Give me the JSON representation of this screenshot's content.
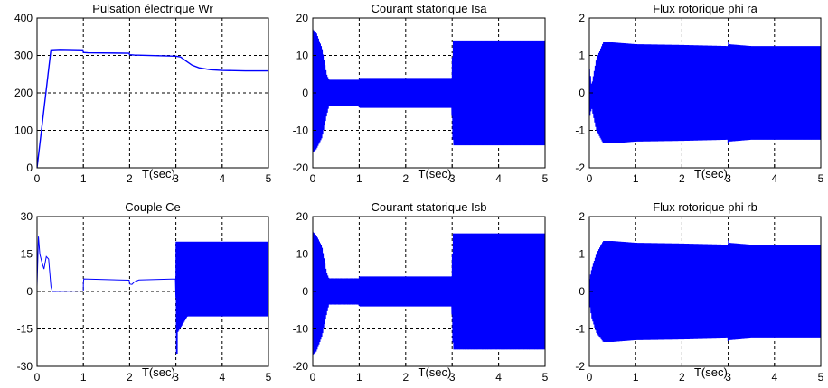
{
  "chart_data": [
    {
      "type": "line",
      "title": "Pulsation électrique Wr",
      "xlabel": "T(sec)",
      "ylabel": "",
      "xlim": [
        0,
        5
      ],
      "ylim": [
        0,
        400
      ],
      "xticks": [
        0,
        1,
        2,
        3,
        4,
        5
      ],
      "yticks": [
        0,
        100,
        200,
        300,
        400
      ],
      "grid": true,
      "color": "#0000ff",
      "signal": "smooth",
      "series": [
        {
          "x": [
            0,
            0.3,
            0.5,
            0.99,
            1.0,
            1.1,
            1.99,
            2.0,
            2.1,
            2.99,
            3.0,
            3.1,
            3.2,
            3.35,
            3.5,
            3.75,
            4.0,
            4.5,
            5.0
          ],
          "values": [
            0,
            315,
            316,
            315,
            308,
            307,
            306,
            302,
            301,
            298,
            298,
            296,
            287,
            274,
            267,
            262,
            260,
            259,
            259
          ]
        }
      ]
    },
    {
      "type": "line",
      "title": "Courant statorique Isa",
      "xlabel": "T(sec)",
      "ylabel": "",
      "xlim": [
        0,
        5
      ],
      "ylim": [
        -20,
        20
      ],
      "xticks": [
        0,
        1,
        2,
        3,
        4,
        5
      ],
      "yticks": [
        -20,
        -10,
        0,
        10,
        20
      ],
      "grid": true,
      "color": "#0000ff",
      "signal": "oscillation",
      "freq": 50,
      "envelope": {
        "x": [
          0,
          0.08,
          0.2,
          0.3,
          0.35,
          0.5,
          0.99,
          1.0,
          2.99,
          3.0,
          3.02,
          5.0
        ],
        "upper": [
          17,
          16,
          12,
          5,
          3.5,
          3.5,
          3.5,
          4,
          4,
          8,
          14,
          14
        ],
        "lower": [
          -16,
          -15,
          -12,
          -6,
          -3.5,
          -3.5,
          -3.5,
          -4,
          -4,
          -8,
          -14,
          -14
        ]
      }
    },
    {
      "type": "line",
      "title": "Flux rotorique phi ra",
      "xlabel": "T(sec)",
      "ylabel": "",
      "xlim": [
        0,
        5
      ],
      "ylim": [
        -2,
        2
      ],
      "xticks": [
        0,
        1,
        2,
        3,
        4,
        5
      ],
      "yticks": [
        -2,
        -1,
        0,
        1,
        2
      ],
      "grid": true,
      "color": "#0000ff",
      "signal": "oscillation",
      "freq": 50,
      "envelope": {
        "x": [
          0,
          0.05,
          0.15,
          0.3,
          0.5,
          1.0,
          2.0,
          2.99,
          3.0,
          3.02,
          3.5,
          5.0
        ],
        "upper": [
          0.7,
          0.2,
          0.9,
          1.35,
          1.35,
          1.3,
          1.28,
          1.25,
          1.4,
          1.3,
          1.25,
          1.25
        ],
        "lower": [
          -0.7,
          -0.4,
          -1.0,
          -1.35,
          -1.35,
          -1.3,
          -1.28,
          -1.25,
          -1.4,
          -1.3,
          -1.25,
          -1.25
        ]
      }
    },
    {
      "type": "line",
      "title": "Couple  Ce",
      "xlabel": "T(sec)",
      "ylabel": "",
      "xlim": [
        0,
        5
      ],
      "ylim": [
        -30,
        30
      ],
      "xticks": [
        0,
        1,
        2,
        3,
        4,
        5
      ],
      "yticks": [
        -30,
        -15,
        0,
        15,
        30
      ],
      "grid": true,
      "color": "#0000ff",
      "signal": "torque",
      "segments": [
        {
          "x": [
            0,
            0.03,
            0.06,
            0.1,
            0.15,
            0.2,
            0.25,
            0.3,
            0.33,
            1.0,
            1.0,
            1.01,
            1.99,
            2.0,
            2.05,
            2.1,
            2.2,
            2.99
          ],
          "values": [
            2,
            22,
            15,
            12,
            9,
            14,
            13,
            2,
            0,
            0.2,
            3.5,
            5,
            4.5,
            3,
            2.8,
            3.8,
            4.6,
            5
          ]
        }
      ],
      "oscillation": {
        "x0": 3.0,
        "x1": 5.0,
        "upper": 20,
        "lower": -10,
        "spike": -25,
        "freq": 60
      }
    },
    {
      "type": "line",
      "title": "Courant statorique Isb",
      "xlabel": "T(sec)",
      "ylabel": "",
      "xlim": [
        0,
        5
      ],
      "ylim": [
        -20,
        20
      ],
      "xticks": [
        0,
        1,
        2,
        3,
        4,
        5
      ],
      "yticks": [
        -20,
        -10,
        0,
        10,
        20
      ],
      "grid": true,
      "color": "#0000ff",
      "signal": "oscillation",
      "freq": 50,
      "envelope": {
        "x": [
          0,
          0.08,
          0.2,
          0.3,
          0.35,
          0.5,
          0.99,
          1.0,
          2.99,
          3.0,
          3.02,
          5.0
        ],
        "upper": [
          16,
          15,
          12,
          5,
          3.5,
          3.5,
          3.5,
          4,
          4,
          8,
          15.5,
          15.5
        ],
        "lower": [
          -17,
          -16,
          -12,
          -6,
          -3.5,
          -3.5,
          -3.5,
          -4,
          -4,
          -8,
          -15.5,
          -15.5
        ]
      }
    },
    {
      "type": "line",
      "title": "Flux rotorique phi rb",
      "xlabel": "T(sec)",
      "ylabel": "",
      "xlim": [
        0,
        5
      ],
      "ylim": [
        -2,
        2
      ],
      "xticks": [
        0,
        1,
        2,
        3,
        4,
        5
      ],
      "yticks": [
        -2,
        -1,
        0,
        1,
        2
      ],
      "grid": true,
      "color": "#0000ff",
      "signal": "oscillation",
      "freq": 50,
      "envelope": {
        "x": [
          0,
          0.05,
          0.15,
          0.3,
          0.5,
          1.0,
          2.0,
          2.99,
          3.0,
          3.02,
          3.5,
          5.0
        ],
        "upper": [
          0.3,
          0.6,
          1.0,
          1.35,
          1.35,
          1.3,
          1.28,
          1.25,
          1.4,
          1.3,
          1.25,
          1.25
        ],
        "lower": [
          -0.3,
          -0.7,
          -1.1,
          -1.35,
          -1.35,
          -1.3,
          -1.28,
          -1.25,
          -1.4,
          -1.3,
          -1.25,
          -1.25
        ]
      }
    }
  ]
}
